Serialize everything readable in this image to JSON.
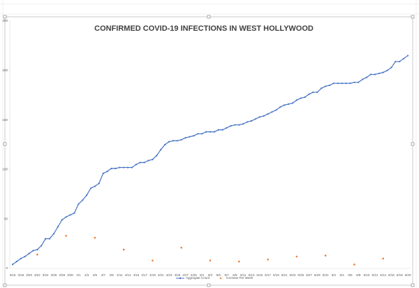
{
  "chart_data": {
    "type": "line",
    "title": "CONFIRMED COVID-19 INFECTIONS IN WEST HOLLYWOOD",
    "categories": [
      "3/16",
      null,
      "3/18",
      null,
      "3/20",
      null,
      "3/22",
      null,
      "3/24",
      null,
      "3/26",
      null,
      "3/28",
      null,
      "3/30",
      null,
      "4/1",
      null,
      "4/3",
      null,
      "4/5",
      null,
      "4/7",
      null,
      "4/9",
      null,
      "4/11",
      null,
      "4/13",
      null,
      "4/15",
      null,
      "4/17",
      null,
      "4/19",
      null,
      "4/21",
      null,
      "4/23",
      null,
      "4/25",
      null,
      "4/27",
      null,
      "4/29",
      null,
      "5/1",
      null,
      "5/3",
      null,
      "5/5",
      null,
      "5/7",
      null,
      "5/9",
      null,
      "5/11",
      null,
      "5/13",
      null,
      "5/15",
      null,
      "5/17",
      null,
      "5/19",
      null,
      "5/21",
      null,
      "5/23",
      null,
      "5/25",
      null,
      "5/27",
      null,
      "5/29",
      null,
      "5/31",
      null,
      "6/2",
      null,
      "6/4",
      null,
      "6/6",
      null,
      "6/8",
      null,
      "6/10",
      null,
      "6/12",
      null,
      "6/14",
      null,
      "6/16",
      null,
      "6/18",
      null,
      "6/20"
    ],
    "series": [
      {
        "name": "Aggregate Count",
        "color": "#4472c4",
        "style": "line-markers",
        "values": [
          4,
          7,
          10,
          12,
          15,
          18,
          19,
          23,
          30,
          30,
          35,
          42,
          49,
          52,
          54,
          56,
          65,
          69,
          74,
          81,
          83,
          86,
          96,
          98,
          101,
          101,
          102,
          102,
          102,
          102,
          105,
          107,
          107,
          109,
          110,
          114,
          120,
          125,
          128,
          129,
          129,
          130,
          132,
          133,
          134,
          136,
          136,
          138,
          138,
          138,
          140,
          140,
          142,
          144,
          145,
          145,
          146,
          148,
          149,
          151,
          153,
          154,
          156,
          158,
          160,
          163,
          165,
          166,
          167,
          170,
          172,
          173,
          176,
          178,
          178,
          182,
          184,
          185,
          187,
          187,
          187,
          187,
          187,
          188,
          188,
          191,
          193,
          196,
          196,
          197,
          198,
          200,
          203,
          209,
          209,
          212,
          215
        ]
      },
      {
        "name": "Increase Per Week",
        "color": "#ed7d31",
        "style": "markers",
        "values": [
          null,
          null,
          null,
          null,
          null,
          null,
          14,
          null,
          null,
          null,
          null,
          null,
          null,
          33,
          null,
          null,
          null,
          null,
          null,
          null,
          31,
          null,
          null,
          null,
          null,
          null,
          null,
          19,
          null,
          null,
          null,
          null,
          null,
          null,
          8,
          null,
          null,
          null,
          null,
          null,
          null,
          21,
          null,
          null,
          null,
          null,
          null,
          null,
          8,
          null,
          null,
          null,
          null,
          null,
          null,
          7,
          null,
          null,
          null,
          null,
          null,
          null,
          9,
          null,
          null,
          null,
          null,
          null,
          null,
          12,
          null,
          null,
          null,
          null,
          null,
          null,
          13,
          null,
          null,
          null,
          null,
          null,
          null,
          4,
          null,
          null,
          null,
          null,
          null,
          null,
          10,
          null,
          null,
          null,
          null,
          null,
          null
        ]
      }
    ],
    "ylim": [
      0,
      250
    ],
    "yticks": [
      0,
      50,
      100,
      150,
      200,
      250
    ],
    "grid": false,
    "legend": "bottom"
  }
}
